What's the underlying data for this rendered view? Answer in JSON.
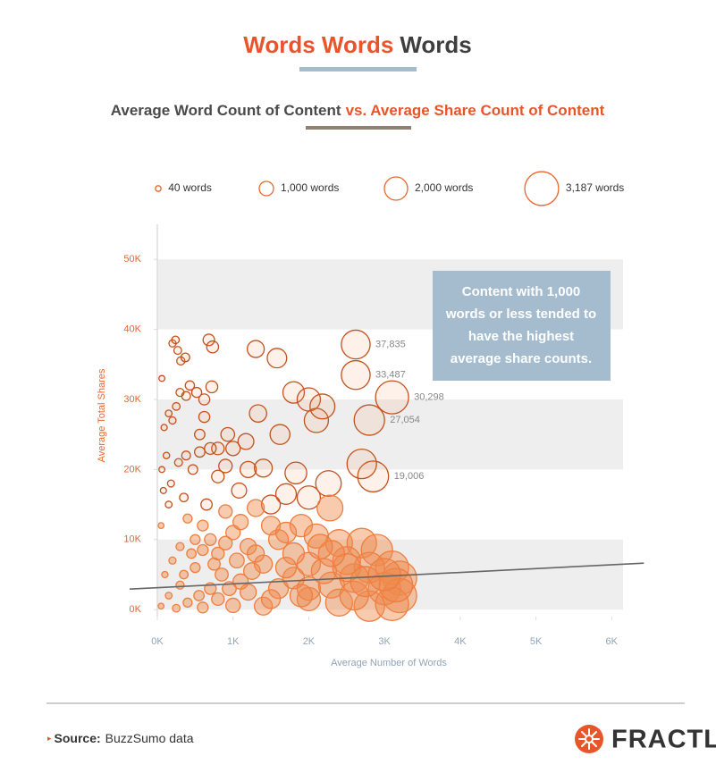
{
  "chart_data": {
    "type": "scatter",
    "title": {
      "highlight": "Words Words",
      "rest": "Words"
    },
    "subtitle": {
      "first": "Average Word Count of Content",
      "second": "vs. Average Share Count of Content"
    },
    "x_label": "Average Number of Words",
    "y_label": "Average Total Shares",
    "xlim": [
      0,
      6150
    ],
    "ylim": [
      -1000,
      55000
    ],
    "xticks": [
      {
        "value": 0,
        "label": "0K"
      },
      {
        "value": 1000,
        "label": "1K"
      },
      {
        "value": 2000,
        "label": "2K"
      },
      {
        "value": 3000,
        "label": "3K"
      },
      {
        "value": 4000,
        "label": "4K"
      },
      {
        "value": 5000,
        "label": "5K"
      },
      {
        "value": 6000,
        "label": "6K"
      }
    ],
    "yticks": [
      {
        "value": 0,
        "label": "0K"
      },
      {
        "value": 10000,
        "label": "10K"
      },
      {
        "value": 20000,
        "label": "20K"
      },
      {
        "value": 30000,
        "label": "30K"
      },
      {
        "value": 40000,
        "label": "40K"
      },
      {
        "value": 50000,
        "label": "50K"
      }
    ],
    "grid_bands": true,
    "color": "#e8662e",
    "size_legend": [
      {
        "value": 40,
        "label": "40 words"
      },
      {
        "value": 1000,
        "label": "1,000 words"
      },
      {
        "value": 2000,
        "label": "2,000 words"
      },
      {
        "value": 3187,
        "label": "3,187 words"
      }
    ],
    "x": [
      2620,
      2620,
      3100,
      2800,
      2850,
      200,
      240,
      270,
      310,
      370,
      680,
      730,
      1300,
      1580,
      2700,
      1800,
      2000,
      2100,
      2180,
      1330,
      1620,
      1170,
      930,
      800,
      720,
      620,
      520,
      430,
      380,
      300,
      250,
      200,
      150,
      90,
      60,
      120,
      60,
      80,
      180,
      280,
      380,
      470,
      560,
      620,
      560,
      700,
      800,
      900,
      1000,
      1080,
      1200,
      1400,
      1830,
      2260,
      2000,
      2280,
      1700,
      1500,
      1300,
      1900,
      2100,
      2400,
      2700,
      2900,
      3100,
      3200,
      3000,
      3200,
      2800,
      2600,
      2500,
      2300,
      2000,
      1800,
      1600,
      1400,
      1200,
      1000,
      800,
      600,
      500,
      400,
      300,
      200,
      100,
      50,
      150,
      350,
      650,
      900,
      1100,
      850,
      700,
      500,
      300,
      150,
      50,
      400,
      800,
      1200,
      1600,
      2000,
      2400,
      2800,
      3100,
      1400,
      1000,
      600,
      250,
      1800,
      2200,
      2600,
      3150,
      1500,
      1700,
      1100,
      900,
      450,
      700,
      1300,
      2000,
      2500,
      2750,
      3000,
      350,
      550,
      950,
      1700,
      1900,
      2300,
      1250,
      1500,
      750,
      600,
      2150,
      1050
    ],
    "values": [
      37835,
      33487,
      30298,
      27054,
      19006,
      38000,
      38500,
      37000,
      35500,
      36000,
      38500,
      37500,
      37200,
      35900,
      20800,
      31000,
      30000,
      27000,
      29000,
      28000,
      25000,
      24000,
      25000,
      23000,
      31800,
      30000,
      31000,
      32000,
      30500,
      31000,
      29000,
      27000,
      28000,
      26000,
      33000,
      22000,
      20000,
      17000,
      18000,
      21000,
      22000,
      20000,
      25000,
      27500,
      22500,
      23000,
      19000,
      20500,
      23000,
      17000,
      20000,
      20200,
      19500,
      18000,
      16000,
      14500,
      16500,
      15000,
      14500,
      12000,
      10500,
      9500,
      9500,
      8500,
      6000,
      4500,
      3000,
      2000,
      6000,
      4500,
      7000,
      3500,
      6500,
      8000,
      10000,
      6500,
      9000,
      11000,
      8000,
      12000,
      10000,
      13000,
      9000,
      7000,
      5000,
      12000,
      15000,
      16000,
      15000,
      14000,
      12500,
      5000,
      3000,
      6000,
      3500,
      2000,
      500,
      1000,
      1500,
      2500,
      3000,
      1500,
      1000,
      500,
      800,
      500,
      600,
      300,
      200,
      4500,
      5500,
      2000,
      3500,
      12000,
      11000,
      4000,
      9500,
      8000,
      10000,
      8000,
      3000,
      6000,
      4000,
      5000,
      5000,
      2000,
      3000,
      6000,
      2000,
      8000,
      5500,
      1500,
      6500,
      8500,
      9000,
      7000
    ],
    "value_labels": [
      "37,835",
      "33,487",
      "30,298",
      "27,054",
      "19,006",
      null,
      null,
      null,
      null,
      null,
      null,
      null,
      null,
      null,
      null,
      null,
      null,
      null,
      null,
      null,
      null,
      null,
      null,
      null,
      null,
      null,
      null,
      null,
      null,
      null,
      null,
      null,
      null,
      null,
      null,
      null,
      null,
      null,
      null,
      null,
      null,
      null,
      null,
      null,
      null,
      null,
      null,
      null,
      null,
      null,
      null,
      null,
      null,
      null,
      null,
      null,
      null,
      null,
      null,
      null,
      null,
      null,
      null,
      null,
      null,
      null,
      null,
      null,
      null,
      null,
      null,
      null,
      null,
      null,
      null,
      null,
      null,
      null,
      null,
      null,
      null,
      null,
      null,
      null,
      null,
      null,
      null,
      null,
      null,
      null,
      null,
      null,
      null,
      null,
      null,
      null,
      null,
      null,
      null,
      null,
      null,
      null,
      null,
      null,
      null,
      null,
      null,
      null,
      null,
      null,
      null,
      null,
      null,
      null,
      null,
      null,
      null,
      null,
      null,
      null,
      null,
      null,
      null,
      null,
      null,
      null,
      null,
      null,
      null,
      null,
      null,
      null,
      null,
      null,
      null,
      null
    ],
    "trendline": {
      "x": [
        -366,
        6425
      ],
      "y": [
        2930,
        6630
      ]
    },
    "callout": [
      "Content with 1,000",
      "words or less tended to",
      "have the highest",
      "average share counts."
    ],
    "source": {
      "label": "Source:",
      "text": "BuzzSumo data"
    },
    "logo": "FRACTL"
  }
}
